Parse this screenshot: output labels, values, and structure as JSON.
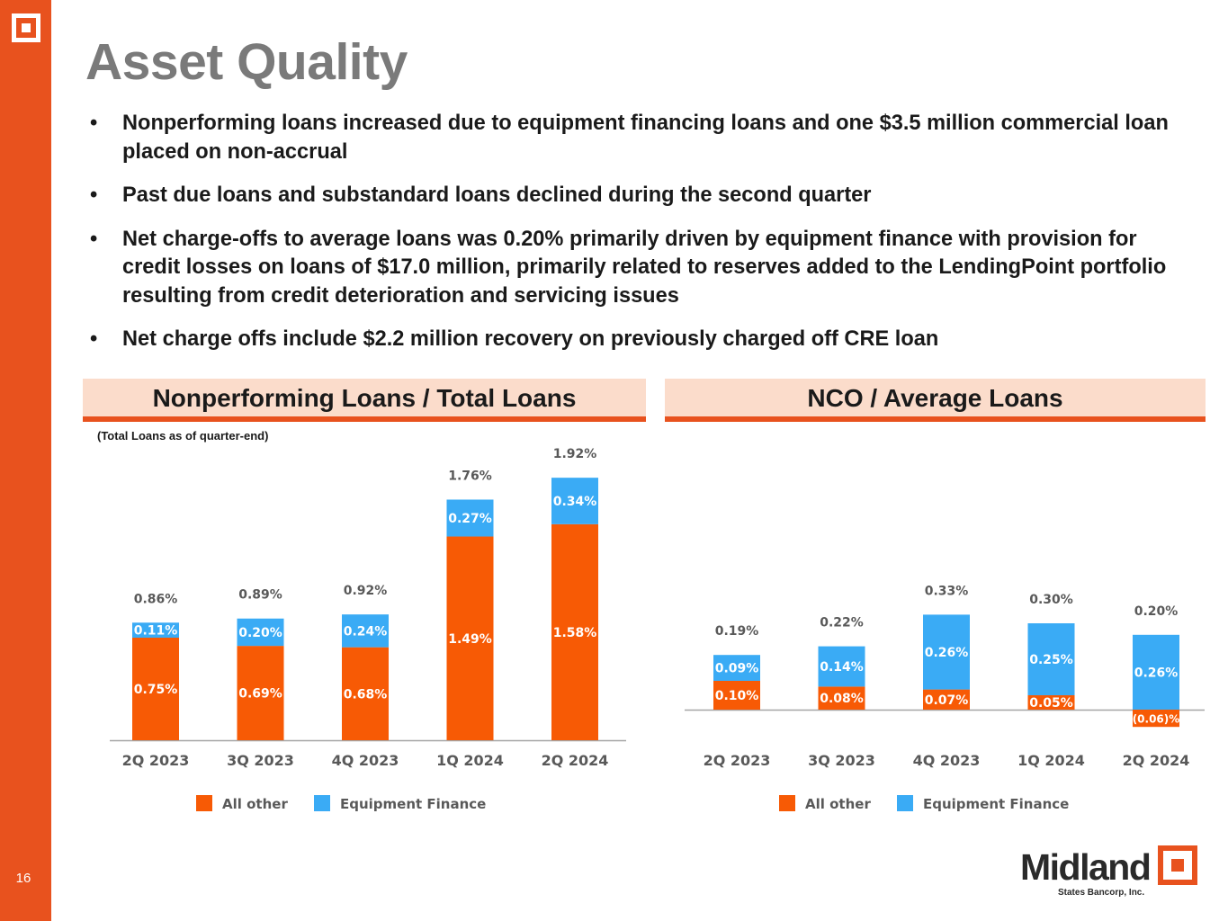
{
  "page": {
    "title": "Asset Quality",
    "page_number": "16",
    "bullets": [
      "Nonperforming loans increased due to equipment financing loans and one $3.5 million commercial loan placed on non-accrual",
      "Past due loans and substandard loans declined during the second quarter",
      "Net charge-offs to average loans was 0.20% primarily driven by equipment finance with provision for credit losses on loans of $17.0 million, primarily related to reserves added to the LendingPoint portfolio resulting from credit deterioration and servicing issues",
      "Net charge offs include $2.2 million recovery on previously charged off CRE loan"
    ]
  },
  "panels": {
    "left": {
      "title": "Nonperforming Loans / Total Loans",
      "note": "(Total Loans as of quarter-end)"
    },
    "right": {
      "title": "NCO / Average Loans"
    }
  },
  "logo": {
    "name": "Midland",
    "tagline": "States Bancorp, Inc."
  },
  "colors": {
    "accent": "#e8521e",
    "all_other": "#f75a05",
    "equipment_finance": "#3aabf5",
    "header_fill": "#fbdccb",
    "title_gray": "#7a7a7a"
  },
  "chart_data": [
    {
      "type": "bar",
      "stacked": true,
      "title": "Nonperforming Loans / Total Loans",
      "categories": [
        "2Q 2023",
        "3Q 2023",
        "4Q 2023",
        "1Q 2024",
        "2Q 2024"
      ],
      "series": [
        {
          "name": "All other",
          "values": [
            0.75,
            0.69,
            0.68,
            1.49,
            1.58
          ],
          "labels": [
            "0.75%",
            "0.69%",
            "0.68%",
            "1.49%",
            "1.58%"
          ]
        },
        {
          "name": "Equipment Finance",
          "values": [
            0.11,
            0.2,
            0.24,
            0.27,
            0.34
          ],
          "labels": [
            "0.11%",
            "0.20%",
            "0.24%",
            "0.27%",
            "0.34%"
          ]
        }
      ],
      "totals": [
        0.86,
        0.89,
        0.92,
        1.76,
        1.92
      ],
      "total_labels": [
        "0.86%",
        "0.89%",
        "0.92%",
        "1.76%",
        "1.92%"
      ],
      "ylim": [
        0,
        2.0
      ],
      "legend": "bottom"
    },
    {
      "type": "bar",
      "stacked": true,
      "title": "NCO / Average Loans",
      "categories": [
        "2Q 2023",
        "3Q 2023",
        "4Q 2023",
        "1Q 2024",
        "2Q 2024"
      ],
      "series": [
        {
          "name": "All other",
          "values": [
            0.1,
            0.08,
            0.07,
            0.05,
            -0.06
          ],
          "labels": [
            "0.10%",
            "0.08%",
            "0.07%",
            "0.05%",
            "(0.06)%"
          ]
        },
        {
          "name": "Equipment Finance",
          "values": [
            0.09,
            0.14,
            0.26,
            0.25,
            0.26
          ],
          "labels": [
            "0.09%",
            "0.14%",
            "0.26%",
            "0.25%",
            "0.26%"
          ]
        }
      ],
      "totals": [
        0.19,
        0.22,
        0.33,
        0.3,
        0.2
      ],
      "total_labels": [
        "0.19%",
        "0.22%",
        "0.33%",
        "0.30%",
        "0.20%"
      ],
      "ylim": [
        -0.06,
        0.34
      ],
      "legend": "bottom"
    }
  ]
}
